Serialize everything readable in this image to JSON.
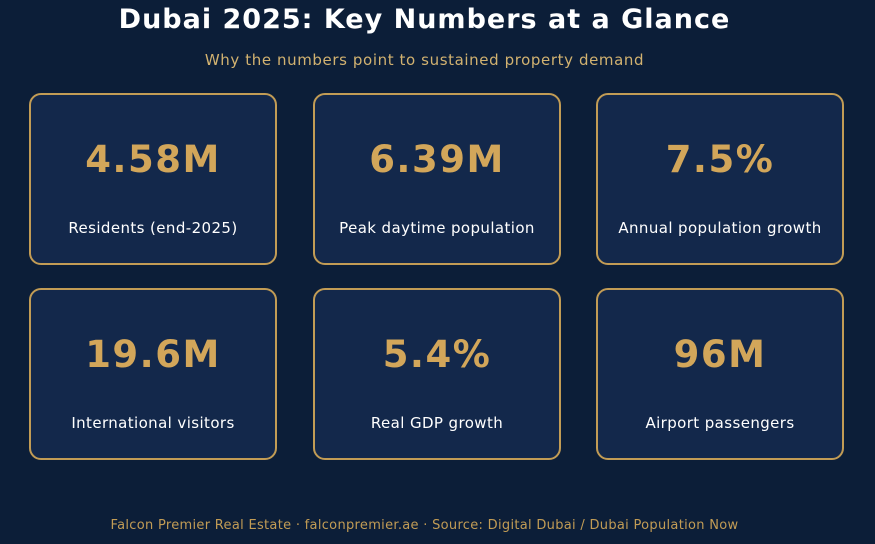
{
  "header": {
    "title": "Dubai 2025: Key Numbers at a Glance",
    "subtitle": "Why the numbers point to sustained property demand"
  },
  "stats": [
    {
      "value": "4.58M",
      "label": "Residents (end-2025)"
    },
    {
      "value": "6.39M",
      "label": "Peak daytime population"
    },
    {
      "value": "7.5%",
      "label": "Annual population growth"
    },
    {
      "value": "19.6M",
      "label": "International visitors"
    },
    {
      "value": "5.4%",
      "label": "Real GDP growth"
    },
    {
      "value": "96M",
      "label": "Airport passengers"
    }
  ],
  "footer": {
    "text": "Falcon Premier Real Estate  ·  falconpremier.ae  ·  Source: Digital Dubai / Dubai Population Now"
  },
  "colors": {
    "background": "#0c1e38",
    "card_background": "#13284b",
    "card_border": "#c29c55",
    "value_text": "#d2a65a",
    "subtitle_text": "#d2b270",
    "label_text": "#ffffff"
  }
}
